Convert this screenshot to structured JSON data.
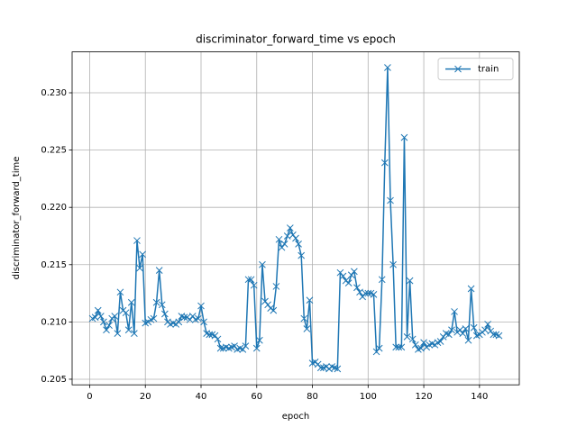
{
  "chart_data": {
    "type": "line",
    "title": "discriminator_forward_time vs epoch",
    "xlabel": "epoch",
    "ylabel": "discriminator_forward_time",
    "x": [
      1,
      2,
      3,
      4,
      5,
      6,
      7,
      8,
      9,
      10,
      11,
      12,
      13,
      14,
      15,
      16,
      17,
      18,
      19,
      20,
      21,
      22,
      23,
      24,
      25,
      26,
      27,
      28,
      29,
      30,
      31,
      32,
      33,
      34,
      35,
      36,
      37,
      38,
      39,
      40,
      41,
      42,
      43,
      44,
      45,
      46,
      47,
      48,
      49,
      50,
      51,
      52,
      53,
      54,
      55,
      56,
      57,
      58,
      59,
      60,
      61,
      62,
      63,
      64,
      65,
      66,
      67,
      68,
      69,
      70,
      71,
      72,
      73,
      74,
      75,
      76,
      77,
      78,
      79,
      80,
      81,
      82,
      83,
      84,
      85,
      86,
      87,
      88,
      89,
      90,
      91,
      92,
      93,
      94,
      95,
      96,
      97,
      98,
      99,
      100,
      101,
      102,
      103,
      104,
      105,
      106,
      107,
      108,
      109,
      110,
      111,
      112,
      113,
      114,
      115,
      116,
      117,
      118,
      119,
      120,
      121,
      122,
      123,
      124,
      125,
      126,
      127,
      128,
      129,
      130,
      131,
      132,
      133,
      134,
      135,
      136,
      137,
      138,
      139,
      140,
      141,
      142,
      143,
      144,
      145,
      146,
      147
    ],
    "series": [
      {
        "name": "train",
        "color": "#1f77b4",
        "values": [
          0.2103,
          0.2104,
          0.211,
          0.2105,
          0.21,
          0.2093,
          0.2097,
          0.2103,
          0.2105,
          0.209,
          0.2126,
          0.211,
          0.2108,
          0.2093,
          0.2117,
          0.209,
          0.2171,
          0.2147,
          0.2159,
          0.2099,
          0.21,
          0.2102,
          0.2103,
          0.2117,
          0.2145,
          0.2115,
          0.2107,
          0.21,
          0.2098,
          0.2099,
          0.2098,
          0.21,
          0.2105,
          0.2104,
          0.2104,
          0.2102,
          0.2105,
          0.2102,
          0.2103,
          0.2114,
          0.21,
          0.209,
          0.2089,
          0.2089,
          0.2088,
          0.2085,
          0.2077,
          0.2077,
          0.2078,
          0.2077,
          0.2078,
          0.2079,
          0.2076,
          0.2077,
          0.2076,
          0.2079,
          0.2137,
          0.2137,
          0.2132,
          0.2077,
          0.2084,
          0.215,
          0.2118,
          0.2115,
          0.2112,
          0.211,
          0.2131,
          0.2172,
          0.2165,
          0.2168,
          0.2175,
          0.2182,
          0.2176,
          0.2173,
          0.2168,
          0.2158,
          0.2103,
          0.2094,
          0.2119,
          0.2064,
          0.2065,
          0.2063,
          0.206,
          0.206,
          0.2061,
          0.2059,
          0.2061,
          0.206,
          0.2059,
          0.2143,
          0.214,
          0.2136,
          0.2134,
          0.2141,
          0.2144,
          0.213,
          0.2126,
          0.2122,
          0.2125,
          0.2125,
          0.2125,
          0.2124,
          0.2074,
          0.2077,
          0.2137,
          0.2239,
          0.2322,
          0.2206,
          0.215,
          0.2078,
          0.2078,
          0.2078,
          0.2261,
          0.2087,
          0.2136,
          0.2085,
          0.208,
          0.2076,
          0.2077,
          0.2082,
          0.2078,
          0.208,
          0.2081,
          0.208,
          0.2082,
          0.2083,
          0.2087,
          0.209,
          0.2089,
          0.2093,
          0.2109,
          0.2091,
          0.2093,
          0.209,
          0.2094,
          0.2084,
          0.2129,
          0.2095,
          0.2088,
          0.2089,
          0.2091,
          0.2093,
          0.2098,
          0.2092,
          0.2089,
          0.2089,
          0.2088
        ]
      }
    ],
    "xlim": [
      -6.3,
      154.3
    ],
    "ylim": [
      0.20451,
      0.23357
    ],
    "xticks": [
      0,
      20,
      40,
      60,
      80,
      100,
      120,
      140
    ],
    "yticks": [
      0.205,
      {
        "value": 0.21,
        "label": "0.210"
      },
      0.215,
      {
        "value": 0.22,
        "label": "0.220"
      },
      0.225,
      {
        "value": 0.23,
        "label": "0.230"
      }
    ],
    "grid": true,
    "legend": "upper right"
  }
}
